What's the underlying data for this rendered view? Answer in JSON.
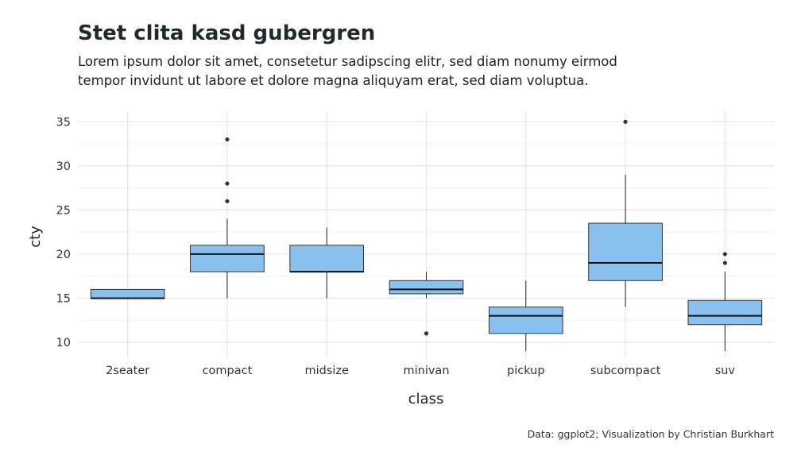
{
  "chart_data": {
    "type": "boxplot",
    "title": "Stet clita kasd gubergren",
    "subtitle": "Lorem ipsum dolor sit amet, consetetur sadipscing elitr, sed diam nonumy eirmod tempor invidunt ut labore et dolore magna aliquyam erat, sed diam voluptua.",
    "caption": "Data: ggplot2; Visualization by Christian Burkhart",
    "xlabel": "class",
    "ylabel": "cty",
    "ylim": [
      8.2,
      36.2
    ],
    "yticks": [
      10,
      15,
      20,
      25,
      30,
      35
    ],
    "grid": true,
    "categories": [
      "2seater",
      "compact",
      "midsize",
      "minivan",
      "pickup",
      "subcompact",
      "suv"
    ],
    "boxes": [
      {
        "category": "2seater",
        "min": 15,
        "q1": 15,
        "median": 15,
        "q3": 16,
        "max": 16,
        "outliers": []
      },
      {
        "category": "compact",
        "min": 15,
        "q1": 18,
        "median": 20,
        "q3": 21,
        "max": 24,
        "outliers": [
          26,
          28,
          33
        ]
      },
      {
        "category": "midsize",
        "min": 15,
        "q1": 18,
        "median": 18,
        "q3": 21,
        "max": 23,
        "outliers": []
      },
      {
        "category": "minivan",
        "min": 15,
        "q1": 15.5,
        "median": 16,
        "q3": 17,
        "max": 18,
        "outliers": [
          11
        ]
      },
      {
        "category": "pickup",
        "min": 9,
        "q1": 11,
        "median": 13,
        "q3": 14,
        "max": 17,
        "outliers": []
      },
      {
        "category": "subcompact",
        "min": 14,
        "q1": 17,
        "median": 19,
        "q3": 23.5,
        "max": 29,
        "outliers": [
          35
        ]
      },
      {
        "category": "suv",
        "min": 9,
        "q1": 12,
        "median": 13,
        "q3": 14.75,
        "max": 18,
        "outliers": [
          19,
          20
        ]
      }
    ],
    "colors": {
      "box_fill": "#89c0ee",
      "box_stroke": "#222222",
      "grid_major": "#e4e4e4",
      "grid_minor": "#f0f0f0",
      "outlier": "#333333"
    }
  }
}
